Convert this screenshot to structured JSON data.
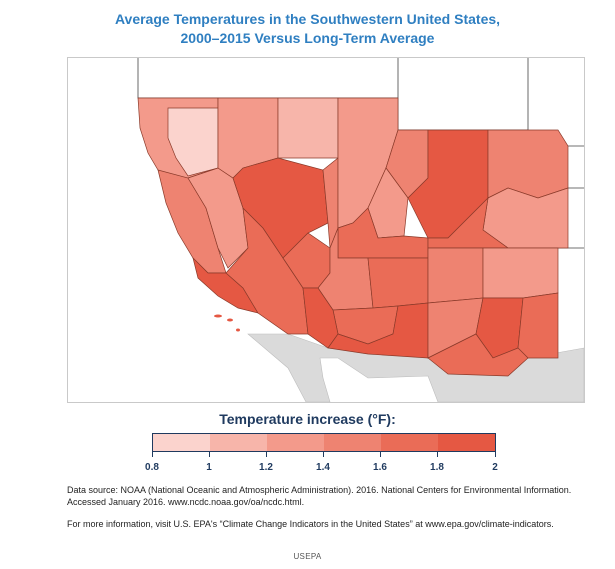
{
  "header": {
    "title_line1": "Average Temperatures in the Southwestern United States,",
    "title_line2": "2000–2015 Versus Long-Term Average"
  },
  "legend": {
    "title": "Temperature increase (°F):",
    "ticks": [
      "0.8",
      "1",
      "1.2",
      "1.4",
      "1.6",
      "1.8",
      "2"
    ],
    "colors": [
      "#fbd3cd",
      "#f7b5aa",
      "#f39a8b",
      "#ee8371",
      "#ea6c57",
      "#e55843"
    ]
  },
  "map": {
    "region": "Southwestern United States (CA, NV, UT, CO, AZ, NM)",
    "background_land_color": "#dadada",
    "boundary_color": "#8a3a2a"
  },
  "notes": {
    "source": "Data source: NOAA (National Oceanic and Atmospheric Administration). 2016. National Centers for Environmental Information. Accessed January 2016. www.ncdc.noaa.gov/oa/ncdc.html.",
    "more_info": "For more information, visit U.S. EPA's “Climate Change Indicators in the United States” at www.epa.gov/climate-indicators."
  },
  "credit": "USEPA"
}
